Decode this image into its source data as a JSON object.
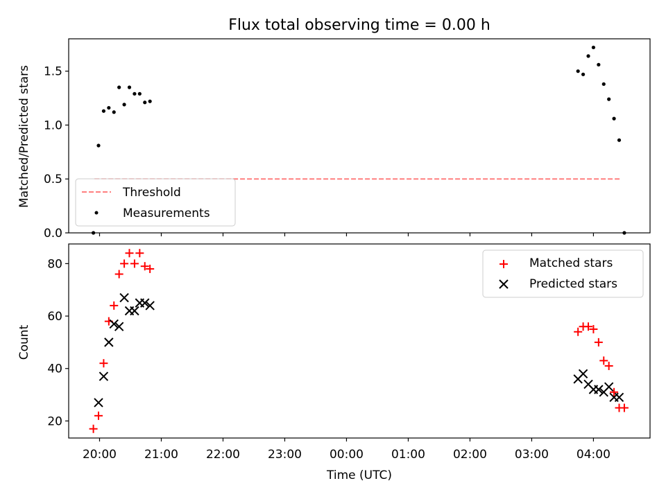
{
  "chart_data": [
    {
      "type": "scatter",
      "title": "Flux total observing time = 0.00 h",
      "ylabel": "Matched/Predicted stars",
      "xlabel": "",
      "ylim": [
        0,
        1.8
      ],
      "yticks": [
        0.0,
        0.5,
        1.0,
        1.5
      ],
      "ytick_labels": [
        "0.0",
        "0.5",
        "1.0",
        "1.5"
      ],
      "legend_position": "lower-left",
      "grid": false,
      "threshold": {
        "name": "Threshold",
        "value": 0.5,
        "x_start": "19:55",
        "x_end": "04:27",
        "style": "dashed",
        "color": "#ff7f7f"
      },
      "series": [
        {
          "name": "Measurements",
          "marker": "dot",
          "color": "#000000",
          "points": [
            [
              "19:54",
              0.0
            ],
            [
              "19:59",
              0.81
            ],
            [
              "20:04",
              1.13
            ],
            [
              "20:09",
              1.16
            ],
            [
              "20:14",
              1.12
            ],
            [
              "20:19",
              1.35
            ],
            [
              "20:24",
              1.19
            ],
            [
              "20:29",
              1.35
            ],
            [
              "20:34",
              1.29
            ],
            [
              "20:39",
              1.29
            ],
            [
              "20:44",
              1.21
            ],
            [
              "20:49",
              1.22
            ],
            [
              "03:45",
              1.5
            ],
            [
              "03:50",
              1.47
            ],
            [
              "03:55",
              1.64
            ],
            [
              "04:00",
              1.72
            ],
            [
              "04:05",
              1.56
            ],
            [
              "04:10",
              1.38
            ],
            [
              "04:15",
              1.24
            ],
            [
              "04:20",
              1.06
            ],
            [
              "04:25",
              0.86
            ],
            [
              "04:30",
              0.0
            ]
          ]
        }
      ]
    },
    {
      "type": "scatter",
      "title": "",
      "ylabel": "Count",
      "xlabel": "Time (UTC)",
      "ylim": [
        13.5,
        87.5
      ],
      "yticks": [
        20,
        40,
        60,
        80
      ],
      "ytick_labels": [
        "20",
        "40",
        "60",
        "80"
      ],
      "xlim": [
        "19:30",
        "04:55"
      ],
      "xticks": [
        "20:00",
        "21:00",
        "22:00",
        "23:00",
        "00:00",
        "01:00",
        "02:00",
        "03:00",
        "04:00"
      ],
      "legend_position": "upper-right",
      "grid": false,
      "series": [
        {
          "name": "Matched stars",
          "marker": "plus",
          "color": "#ff0000",
          "points": [
            [
              "19:54",
              17
            ],
            [
              "19:59",
              22
            ],
            [
              "20:04",
              42
            ],
            [
              "20:09",
              58
            ],
            [
              "20:14",
              64
            ],
            [
              "20:19",
              76
            ],
            [
              "20:24",
              80
            ],
            [
              "20:29",
              84
            ],
            [
              "20:34",
              80
            ],
            [
              "20:39",
              84
            ],
            [
              "20:44",
              79
            ],
            [
              "20:49",
              78
            ],
            [
              "03:45",
              54
            ],
            [
              "03:50",
              56
            ],
            [
              "03:55",
              56
            ],
            [
              "04:00",
              55
            ],
            [
              "04:05",
              50
            ],
            [
              "04:10",
              43
            ],
            [
              "04:15",
              41
            ],
            [
              "04:20",
              31
            ],
            [
              "04:25",
              25
            ],
            [
              "04:30",
              25
            ]
          ]
        },
        {
          "name": "Predicted stars",
          "marker": "x",
          "color": "#000000",
          "points": [
            [
              "19:59",
              27
            ],
            [
              "20:04",
              37
            ],
            [
              "20:09",
              50
            ],
            [
              "20:14",
              57
            ],
            [
              "20:19",
              56
            ],
            [
              "20:24",
              67
            ],
            [
              "20:29",
              62
            ],
            [
              "20:34",
              62
            ],
            [
              "20:39",
              65
            ],
            [
              "20:44",
              65
            ],
            [
              "20:49",
              64
            ],
            [
              "03:45",
              36
            ],
            [
              "03:50",
              38
            ],
            [
              "03:55",
              34
            ],
            [
              "04:00",
              32
            ],
            [
              "04:05",
              32
            ],
            [
              "04:10",
              31
            ],
            [
              "04:15",
              33
            ],
            [
              "04:20",
              29
            ],
            [
              "04:25",
              29
            ]
          ]
        }
      ]
    }
  ]
}
